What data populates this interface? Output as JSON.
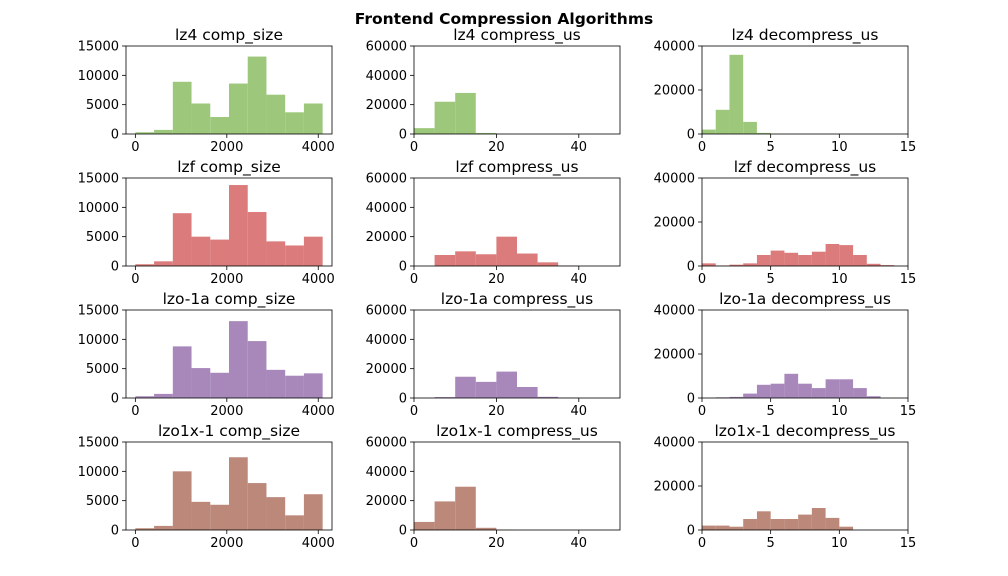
{
  "title": "Frontend Compression Algorithms",
  "chart_data": [
    {
      "type": "histogram",
      "title": "lz4 comp_size",
      "color": "#9dc87c",
      "bins": [
        0,
        409.6,
        819.2,
        1228.8,
        1638.4,
        2048,
        2457.6,
        2867.2,
        3276.8,
        3686.4,
        4096
      ],
      "values": [
        300,
        700,
        8900,
        5200,
        2900,
        8600,
        13200,
        6700,
        3700,
        5200
      ],
      "xlim": [
        -204.8,
        4300.8
      ],
      "xticks": [
        0,
        2000,
        4000
      ],
      "ylim": [
        0,
        15000
      ],
      "yticks": [
        0,
        5000,
        10000,
        15000
      ]
    },
    {
      "type": "histogram",
      "title": "lz4 compress_us",
      "color": "#9dc87c",
      "bins": [
        0,
        5,
        10,
        15,
        20,
        25,
        30,
        35,
        40,
        45,
        50
      ],
      "values": [
        4000,
        22000,
        28000,
        700,
        100,
        0,
        0,
        0,
        0,
        0
      ],
      "xlim": [
        0,
        50
      ],
      "xticks": [
        0,
        20,
        40
      ],
      "ylim": [
        0,
        60000
      ],
      "yticks": [
        0,
        20000,
        40000,
        60000
      ]
    },
    {
      "type": "histogram",
      "title": "lz4 decompress_us",
      "color": "#9dc87c",
      "bins": [
        0,
        1,
        2,
        3,
        4,
        5,
        6,
        7,
        8,
        9,
        10,
        11,
        12,
        13,
        14,
        15
      ],
      "values": [
        2000,
        11000,
        36000,
        5500,
        500,
        0,
        0,
        0,
        0,
        0,
        0,
        0,
        0,
        0,
        0
      ],
      "xlim": [
        0,
        15
      ],
      "xticks": [
        0,
        5,
        10,
        15
      ],
      "ylim": [
        0,
        40000
      ],
      "yticks": [
        0,
        20000,
        40000
      ]
    },
    {
      "type": "histogram",
      "title": "lzf comp_size",
      "color": "#db7b7b",
      "bins": [
        0,
        409.6,
        819.2,
        1228.8,
        1638.4,
        2048,
        2457.6,
        2867.2,
        3276.8,
        3686.4,
        4096
      ],
      "values": [
        300,
        800,
        9000,
        5000,
        4500,
        13800,
        9200,
        4200,
        3500,
        5000
      ],
      "xlim": [
        -204.8,
        4300.8
      ],
      "xticks": [
        0,
        2000,
        4000
      ],
      "ylim": [
        0,
        15000
      ],
      "yticks": [
        0,
        5000,
        10000,
        15000
      ]
    },
    {
      "type": "histogram",
      "title": "lzf compress_us",
      "color": "#db7b7b",
      "bins": [
        0,
        5,
        10,
        15,
        20,
        25,
        30,
        35,
        40,
        45,
        50
      ],
      "values": [
        0,
        7500,
        10000,
        8000,
        20000,
        8500,
        2500,
        300,
        0,
        0
      ],
      "xlim": [
        0,
        50
      ],
      "xticks": [
        0,
        20,
        40
      ],
      "ylim": [
        0,
        60000
      ],
      "yticks": [
        0,
        20000,
        40000,
        60000
      ]
    },
    {
      "type": "histogram",
      "title": "lzf decompress_us",
      "color": "#db7b7b",
      "bins": [
        0,
        1,
        2,
        3,
        4,
        5,
        6,
        7,
        8,
        9,
        10,
        11,
        12,
        13,
        14,
        15
      ],
      "values": [
        1200,
        200,
        600,
        1200,
        5000,
        7000,
        6000,
        5000,
        6500,
        10000,
        9500,
        5000,
        1000,
        400,
        0
      ],
      "xlim": [
        0,
        15
      ],
      "xticks": [
        0,
        5,
        10,
        15
      ],
      "ylim": [
        0,
        40000
      ],
      "yticks": [
        0,
        20000,
        40000
      ]
    },
    {
      "type": "histogram",
      "title": "lzo-1a comp_size",
      "color": "#a887bb",
      "bins": [
        0,
        409.6,
        819.2,
        1228.8,
        1638.4,
        2048,
        2457.6,
        2867.2,
        3276.8,
        3686.4,
        4096
      ],
      "values": [
        300,
        700,
        8800,
        5100,
        4300,
        13100,
        9700,
        4800,
        3800,
        4200
      ],
      "xlim": [
        -204.8,
        4300.8
      ],
      "xticks": [
        0,
        2000,
        4000
      ],
      "ylim": [
        0,
        15000
      ],
      "yticks": [
        0,
        5000,
        10000,
        15000
      ]
    },
    {
      "type": "histogram",
      "title": "lzo-1a compress_us",
      "color": "#a887bb",
      "bins": [
        0,
        5,
        10,
        15,
        20,
        25,
        30,
        35,
        40,
        45,
        50
      ],
      "values": [
        0,
        600,
        14500,
        11000,
        18000,
        7500,
        800,
        200,
        0,
        0
      ],
      "xlim": [
        0,
        50
      ],
      "xticks": [
        0,
        20,
        40
      ],
      "ylim": [
        0,
        60000
      ],
      "yticks": [
        0,
        20000,
        40000,
        60000
      ]
    },
    {
      "type": "histogram",
      "title": "lzo-1a decompress_us",
      "color": "#a887bb",
      "bins": [
        0,
        1,
        2,
        3,
        4,
        5,
        6,
        7,
        8,
        9,
        10,
        11,
        12,
        13,
        14,
        15
      ],
      "values": [
        0,
        300,
        500,
        2000,
        6000,
        6500,
        11000,
        6500,
        4500,
        8500,
        8500,
        4500,
        800,
        0,
        0
      ],
      "xlim": [
        0,
        15
      ],
      "xticks": [
        0,
        5,
        10,
        15
      ],
      "ylim": [
        0,
        40000
      ],
      "yticks": [
        0,
        20000,
        40000
      ]
    },
    {
      "type": "histogram",
      "title": "lzo1x-1 comp_size",
      "color": "#bb887a",
      "bins": [
        0,
        409.6,
        819.2,
        1228.8,
        1638.4,
        2048,
        2457.6,
        2867.2,
        3276.8,
        3686.4,
        4096
      ],
      "values": [
        300,
        700,
        10000,
        4800,
        4300,
        12400,
        8000,
        5600,
        2500,
        6100
      ],
      "xlim": [
        -204.8,
        4300.8
      ],
      "xticks": [
        0,
        2000,
        4000
      ],
      "ylim": [
        0,
        15000
      ],
      "yticks": [
        0,
        5000,
        10000,
        15000
      ]
    },
    {
      "type": "histogram",
      "title": "lzo1x-1 compress_us",
      "color": "#bb887a",
      "bins": [
        0,
        5,
        10,
        15,
        20,
        25,
        30,
        35,
        40,
        45,
        50
      ],
      "values": [
        5500,
        19500,
        29500,
        1500,
        100,
        0,
        0,
        0,
        0,
        0
      ],
      "xlim": [
        0,
        50
      ],
      "xticks": [
        0,
        20,
        40
      ],
      "ylim": [
        0,
        60000
      ],
      "yticks": [
        0,
        20000,
        40000,
        60000
      ]
    },
    {
      "type": "histogram",
      "title": "lzo1x-1 decompress_us",
      "color": "#bb887a",
      "bins": [
        0,
        1,
        2,
        3,
        4,
        5,
        6,
        7,
        8,
        9,
        10,
        11,
        12,
        13,
        14,
        15
      ],
      "values": [
        2000,
        2000,
        1500,
        5000,
        8500,
        5000,
        5000,
        7000,
        10000,
        5500,
        1500,
        0,
        0,
        0,
        0
      ],
      "xlim": [
        0,
        15
      ],
      "xticks": [
        0,
        5,
        10,
        15
      ],
      "ylim": [
        0,
        40000
      ],
      "yticks": [
        0,
        20000,
        40000
      ]
    }
  ]
}
